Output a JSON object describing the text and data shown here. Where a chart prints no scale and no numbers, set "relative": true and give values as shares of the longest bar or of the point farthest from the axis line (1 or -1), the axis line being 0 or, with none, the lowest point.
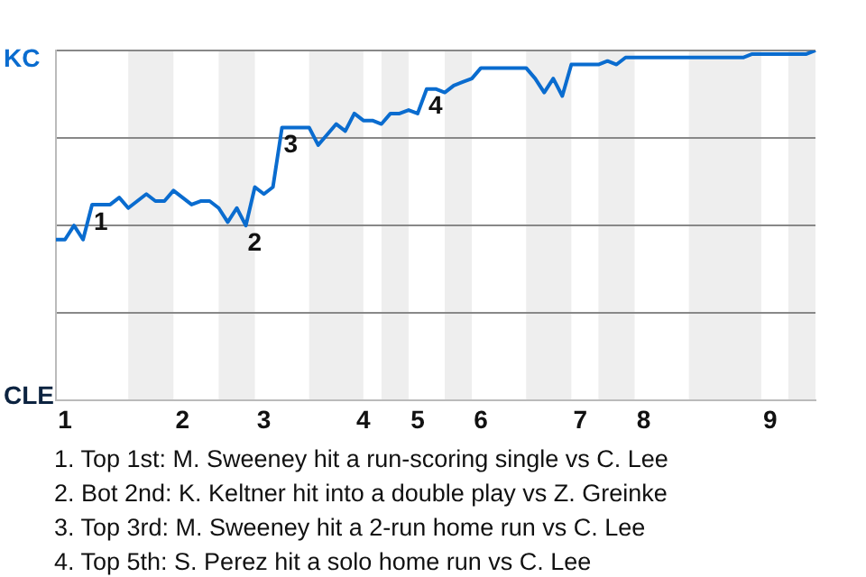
{
  "chart_data": {
    "type": "line",
    "relative": true,
    "categories": [
      null,
      "1",
      null,
      null,
      null,
      null,
      null,
      null,
      null,
      null,
      null,
      null,
      null,
      null,
      "2",
      null,
      null,
      null,
      null,
      null,
      null,
      null,
      null,
      "3",
      null,
      null,
      null,
      null,
      null,
      null,
      null,
      null,
      null,
      null,
      "4",
      null,
      null,
      null,
      null,
      null,
      "5",
      null,
      null,
      null,
      null,
      null,
      null,
      "6",
      null,
      null,
      null,
      null,
      null,
      null,
      null,
      null,
      null,
      null,
      "7",
      null,
      null,
      null,
      null,
      null,
      null,
      "8",
      null,
      null,
      null,
      null,
      null,
      null,
      null,
      null,
      null,
      null,
      null,
      null,
      null,
      "9",
      null,
      null,
      null,
      null,
      null
    ],
    "series": [
      {
        "color": "#0a6ccf",
        "values": [
          0.46,
          0.46,
          0.5,
          0.46,
          0.56,
          0.56,
          0.56,
          0.58,
          0.55,
          0.57,
          0.59,
          0.57,
          0.57,
          0.6,
          0.58,
          0.56,
          0.57,
          0.57,
          0.55,
          0.51,
          0.55,
          0.5,
          0.61,
          0.59,
          0.61,
          0.78,
          0.78,
          0.78,
          0.78,
          0.73,
          0.76,
          0.79,
          0.77,
          0.82,
          0.8,
          0.8,
          0.79,
          0.82,
          0.82,
          0.83,
          0.82,
          0.89,
          0.89,
          0.88,
          0.9,
          0.91,
          0.92,
          0.95,
          0.95,
          0.95,
          0.95,
          0.95,
          0.95,
          0.92,
          0.88,
          0.92,
          0.87,
          0.96,
          0.96,
          0.96,
          0.96,
          0.97,
          0.96,
          0.98,
          0.98,
          0.98,
          0.98,
          0.98,
          0.98,
          0.98,
          0.98,
          0.98,
          0.98,
          0.98,
          0.98,
          0.98,
          0.98,
          0.99,
          0.99,
          0.99,
          0.99,
          0.99,
          0.99,
          0.99,
          1
        ]
      }
    ],
    "grid": "y",
    "legend": false,
    "marker": "none",
    "annotations": [
      {
        "text": "1",
        "y": 0.56
      },
      {
        "text": "2",
        "y": 0.5
      },
      {
        "text": "3",
        "y": 0.78
      },
      {
        "text": "4",
        "y": 0.89
      },
      "KC",
      "CLE",
      "1. Top 1st: M. Sweeney hit a run-scoring single vs C. Lee",
      "2. Bot 2nd: K. Keltner hit into a double play vs Z. Greinke",
      "3. Top 3rd: M. Sweeney hit a 2-run home run vs C. Lee",
      "4. Top 5th: S. Perez hit a solo home run vs C. Lee"
    ]
  }
}
